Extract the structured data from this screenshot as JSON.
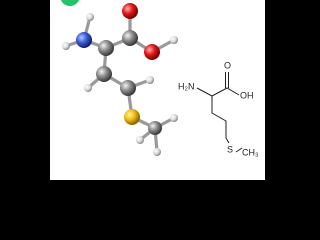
{
  "labels": {
    "amine": "H₂N",
    "hydroxyl": "OH",
    "carbonyl_oxygen": "O",
    "sulfur": "S",
    "methyl": "CH₃"
  }
}
